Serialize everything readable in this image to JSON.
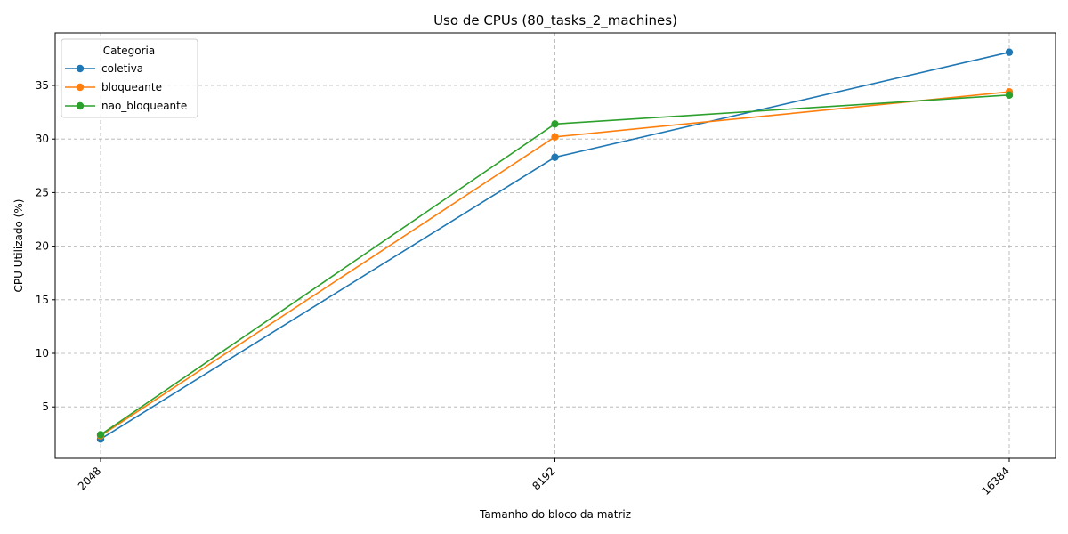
{
  "chart_data": {
    "type": "line",
    "title": "Uso de CPUs (80_tasks_2_machines)",
    "xlabel": "Tamanho do bloco da matriz",
    "ylabel": "CPU Utilizado (%)",
    "categories": [
      "2048",
      "8192",
      "16384"
    ],
    "yticks": [
      5,
      10,
      15,
      20,
      25,
      30,
      35
    ],
    "ylim": [
      0.2,
      39.9
    ],
    "grid": true,
    "legend": {
      "title": "Categoria",
      "placement": "top-left"
    },
    "series": [
      {
        "name": "coletiva",
        "values": [
          2.0,
          28.3,
          38.1
        ],
        "color": "#1f77b4"
      },
      {
        "name": "bloqueante",
        "values": [
          2.3,
          30.2,
          34.4
        ],
        "color": "#ff7f0e"
      },
      {
        "name": "nao_bloqueante",
        "values": [
          2.4,
          31.4,
          34.1
        ],
        "color": "#2ca02c"
      }
    ]
  }
}
